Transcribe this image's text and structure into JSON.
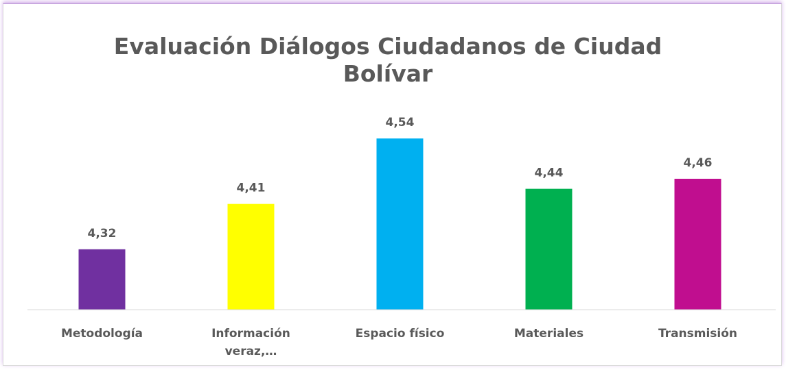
{
  "chart_data": {
    "type": "bar",
    "title": "Evaluación Diálogos Ciudadanos de Ciudad Bolívar",
    "categories": [
      "Metodología",
      "Información veraz,…",
      "Espacio físico",
      "Materiales",
      "Transmisión"
    ],
    "values": [
      4.32,
      4.41,
      4.54,
      4.44,
      4.46
    ],
    "value_labels": [
      "4,32",
      "4,41",
      "4,54",
      "4,44",
      "4,46"
    ],
    "colors": [
      "#7030a0",
      "#ffff00",
      "#00b0f0",
      "#00b050",
      "#c00e8f"
    ],
    "ylim": [
      4.2,
      4.6
    ]
  }
}
